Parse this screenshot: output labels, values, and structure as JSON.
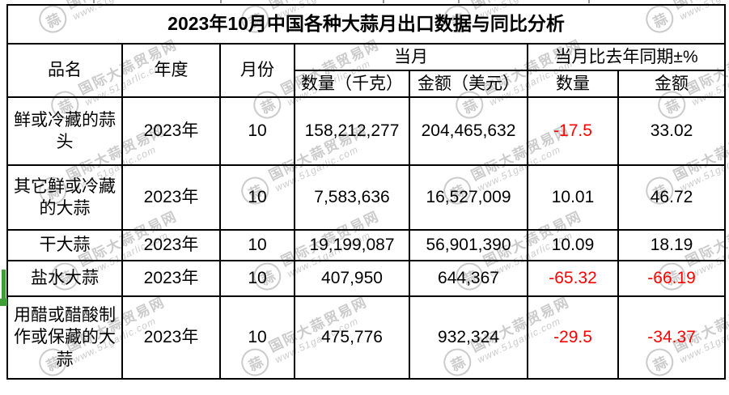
{
  "title": "2023年10月中国各种大蒜月出口数据与同比分析",
  "table": {
    "headers": {
      "product": "品名",
      "year": "年度",
      "month": "月份",
      "current_month": "当月",
      "qty_kg": "数量（千克）",
      "amount_usd": "金额（美元）",
      "yoy": "当月比去年同期±%",
      "yoy_qty": "数量",
      "yoy_amount": "金额"
    },
    "rows": [
      {
        "product": "鲜或冷藏的蒜头",
        "year": "2023年",
        "month": "10",
        "qty": "158,212,277",
        "amount": "204,465,632",
        "yoy_qty": "-17.5",
        "yoy_amount": "33.02"
      },
      {
        "product": "其它鲜或冷藏的大蒜",
        "year": "2023年",
        "month": "10",
        "qty": "7,583,636",
        "amount": "16,527,009",
        "yoy_qty": "10.01",
        "yoy_amount": "46.72"
      },
      {
        "product": "干大蒜",
        "year": "2023年",
        "month": "10",
        "qty": "19,199,087",
        "amount": "56,901,390",
        "yoy_qty": "10.09",
        "yoy_amount": "18.19"
      },
      {
        "product": "盐水大蒜",
        "year": "2023年",
        "month": "10",
        "qty": "407,950",
        "amount": "644,367",
        "yoy_qty": "-65.32",
        "yoy_amount": "-66.19"
      },
      {
        "product": "用醋或醋酸制作或保藏的大蒜",
        "year": "2023年",
        "month": "10",
        "qty": "475,776",
        "amount": "932,324",
        "yoy_qty": "-29.5",
        "yoy_amount": "-34.37"
      }
    ]
  },
  "watermark": {
    "logo_char": "蒜",
    "site_name": "国际大蒜贸易网",
    "site_url": "www.51garlic.com"
  },
  "colors": {
    "negative": "#ff0000",
    "selection_green": "#3f9e36",
    "watermark": "#c2c2c2",
    "border": "#000000"
  },
  "chart_data": {
    "type": "table",
    "title": "2023年10月中国各种大蒜月出口数据与同比分析",
    "columns": [
      "品名",
      "年度",
      "月份",
      "当月 数量（千克）",
      "当月 金额（美元）",
      "当月比去年同期±% 数量",
      "当月比去年同期±% 金额"
    ],
    "rows": [
      [
        "鲜或冷藏的蒜头",
        "2023年",
        10,
        158212277,
        204465632,
        -17.5,
        33.02
      ],
      [
        "其它鲜或冷藏的大蒜",
        "2023年",
        10,
        7583636,
        16527009,
        10.01,
        46.72
      ],
      [
        "干大蒜",
        "2023年",
        10,
        19199087,
        56901390,
        10.09,
        18.19
      ],
      [
        "盐水大蒜",
        "2023年",
        10,
        407950,
        644367,
        -65.32,
        -66.19
      ],
      [
        "用醋或醋酸制作或保藏的大蒜",
        "2023年",
        10,
        475776,
        932324,
        -29.5,
        -34.37
      ]
    ]
  }
}
